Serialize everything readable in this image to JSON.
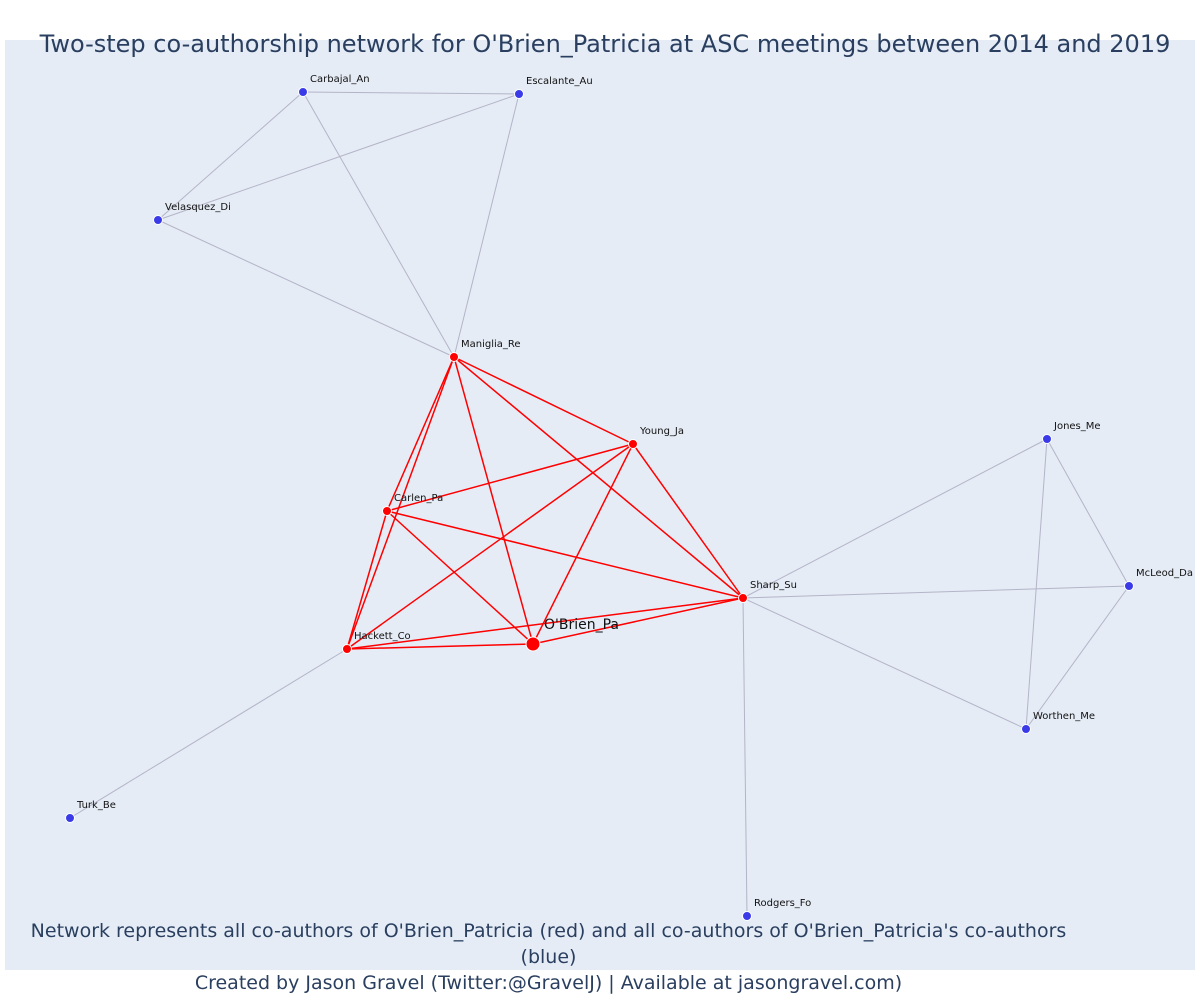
{
  "title": "Two-step co-authorship network for O'Brien_Patricia at ASC meetings between 2014 and 2019",
  "footnote": {
    "line1": "Network represents all co-authors of O'Brien_Patricia (red) and all co-authors of O'Brien_Patricia's co-authors (blue)",
    "line2": "Created by Jason Gravel (Twitter:@GravelJ) | Available at jasongravel.com)"
  },
  "colors": {
    "plot_bg": "#e5ecf6",
    "red": "#ff0000",
    "blue": "#3a3ae8",
    "gray_edge": "#b4b4c8",
    "text": "#2a3f5f"
  },
  "network": {
    "nodes": [
      {
        "id": "OBrien_Pa",
        "label": "O'Brien_Pa",
        "group": "focal"
      },
      {
        "id": "Maniglia_Re",
        "label": "Maniglia_Re",
        "group": "coauthor"
      },
      {
        "id": "Young_Ja",
        "label": "Young_Ja",
        "group": "coauthor"
      },
      {
        "id": "Carlen_Pa",
        "label": "Carlen_Pa",
        "group": "coauthor"
      },
      {
        "id": "Hackett_Co",
        "label": "Hackett_Co",
        "group": "coauthor"
      },
      {
        "id": "Sharp_Su",
        "label": "Sharp_Su",
        "group": "coauthor"
      },
      {
        "id": "Carbajal_An",
        "label": "Carbajal_An",
        "group": "second"
      },
      {
        "id": "Escalante_Au",
        "label": "Escalante_Au",
        "group": "second"
      },
      {
        "id": "Velasquez_Di",
        "label": "Velasquez_Di",
        "group": "second"
      },
      {
        "id": "Jones_Me",
        "label": "Jones_Me",
        "group": "second"
      },
      {
        "id": "McLeod_Da",
        "label": "McLeod_Da",
        "group": "second"
      },
      {
        "id": "Worthen_Me",
        "label": "Worthen_Me",
        "group": "second"
      },
      {
        "id": "Turk_Be",
        "label": "Turk_Be",
        "group": "second"
      },
      {
        "id": "Rodgers_Fo",
        "label": "Rodgers_Fo",
        "group": "second"
      }
    ],
    "edges": [
      {
        "source": "Maniglia_Re",
        "target": "Young_Ja",
        "type": "red"
      },
      {
        "source": "Maniglia_Re",
        "target": "Carlen_Pa",
        "type": "red"
      },
      {
        "source": "Maniglia_Re",
        "target": "Hackett_Co",
        "type": "red"
      },
      {
        "source": "Maniglia_Re",
        "target": "OBrien_Pa",
        "type": "red"
      },
      {
        "source": "Maniglia_Re",
        "target": "Sharp_Su",
        "type": "red"
      },
      {
        "source": "Young_Ja",
        "target": "Carlen_Pa",
        "type": "red"
      },
      {
        "source": "Young_Ja",
        "target": "Hackett_Co",
        "type": "red"
      },
      {
        "source": "Young_Ja",
        "target": "OBrien_Pa",
        "type": "red"
      },
      {
        "source": "Young_Ja",
        "target": "Sharp_Su",
        "type": "red"
      },
      {
        "source": "Carlen_Pa",
        "target": "Hackett_Co",
        "type": "red"
      },
      {
        "source": "Carlen_Pa",
        "target": "OBrien_Pa",
        "type": "red"
      },
      {
        "source": "Carlen_Pa",
        "target": "Sharp_Su",
        "type": "red"
      },
      {
        "source": "Hackett_Co",
        "target": "OBrien_Pa",
        "type": "red"
      },
      {
        "source": "Hackett_Co",
        "target": "Sharp_Su",
        "type": "red"
      },
      {
        "source": "OBrien_Pa",
        "target": "Sharp_Su",
        "type": "red"
      },
      {
        "source": "Carbajal_An",
        "target": "Escalante_Au",
        "type": "gray"
      },
      {
        "source": "Carbajal_An",
        "target": "Velasquez_Di",
        "type": "gray"
      },
      {
        "source": "Carbajal_An",
        "target": "Maniglia_Re",
        "type": "gray"
      },
      {
        "source": "Escalante_Au",
        "target": "Velasquez_Di",
        "type": "gray"
      },
      {
        "source": "Escalante_Au",
        "target": "Maniglia_Re",
        "type": "gray"
      },
      {
        "source": "Velasquez_Di",
        "target": "Maniglia_Re",
        "type": "gray"
      },
      {
        "source": "Sharp_Su",
        "target": "Jones_Me",
        "type": "gray"
      },
      {
        "source": "Sharp_Su",
        "target": "McLeod_Da",
        "type": "gray"
      },
      {
        "source": "Sharp_Su",
        "target": "Worthen_Me",
        "type": "gray"
      },
      {
        "source": "Sharp_Su",
        "target": "Rodgers_Fo",
        "type": "gray"
      },
      {
        "source": "Jones_Me",
        "target": "McLeod_Da",
        "type": "gray"
      },
      {
        "source": "Jones_Me",
        "target": "Worthen_Me",
        "type": "gray"
      },
      {
        "source": "McLeod_Da",
        "target": "Worthen_Me",
        "type": "gray"
      },
      {
        "source": "Hackett_Co",
        "target": "Turk_Be",
        "type": "gray"
      }
    ]
  }
}
